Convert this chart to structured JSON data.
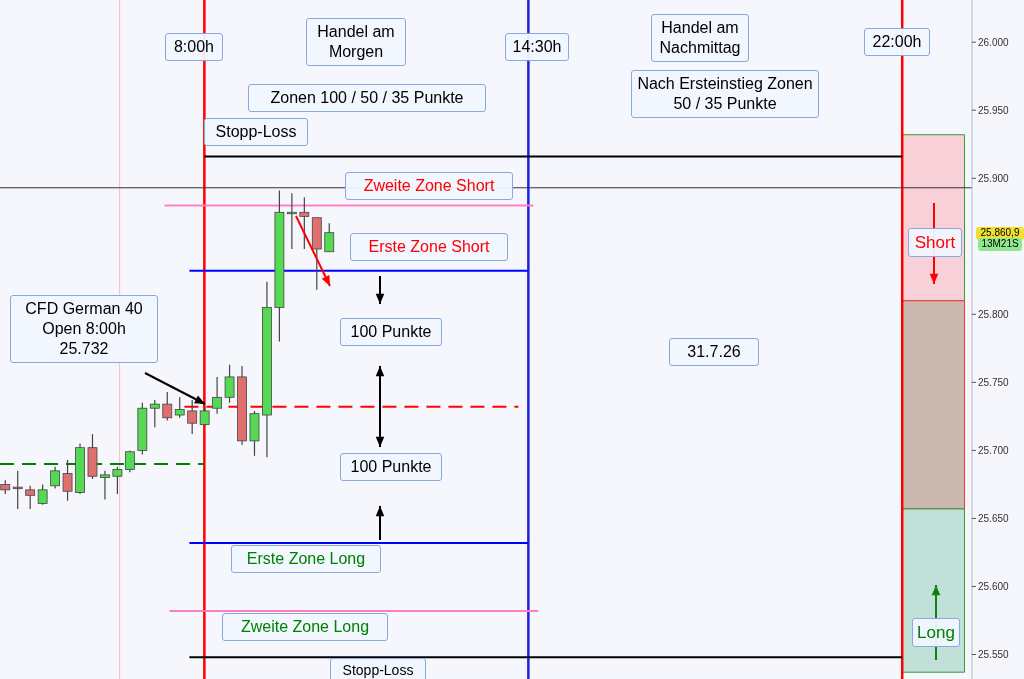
{
  "chart_data": {
    "type": "candlestick",
    "x": [
      4,
      4.25,
      4.5,
      4.75,
      5,
      5.25,
      5.5,
      5.75,
      6,
      6.25,
      6.5,
      6.75,
      7,
      7.25,
      7.5,
      7.75,
      8,
      8.25,
      8.5,
      8.75,
      9,
      9.25,
      9.5,
      9.75,
      10,
      10.25,
      10.5
    ],
    "ohlc": [
      [
        25675,
        25678,
        25668,
        25671
      ],
      [
        25673,
        25685,
        25657,
        25672
      ],
      [
        25671,
        25674,
        25657,
        25667
      ],
      [
        25661,
        25675,
        25660,
        25671
      ],
      [
        25674,
        25688,
        25672,
        25685
      ],
      [
        25683,
        25693,
        25663,
        25670
      ],
      [
        25669,
        25705,
        25668,
        25702
      ],
      [
        25702,
        25712,
        25679,
        25681
      ],
      [
        25680,
        25685,
        25664,
        25682
      ],
      [
        25681,
        25688,
        25668,
        25686
      ],
      [
        25686,
        25700,
        25684,
        25699
      ],
      [
        25700,
        25735,
        25697,
        25731
      ],
      [
        25731,
        25737,
        25717,
        25734
      ],
      [
        25734,
        25743,
        25722,
        25724
      ],
      [
        25726,
        25739,
        25724,
        25730
      ],
      [
        25729,
        25737,
        25712,
        25720
      ],
      [
        25719,
        25732,
        25718,
        25729
      ],
      [
        25731,
        25754,
        25727,
        25739
      ],
      [
        25739,
        25763,
        25735,
        25754
      ],
      [
        25754,
        25762,
        25704,
        25707
      ],
      [
        25707,
        25729,
        25696,
        25727
      ],
      [
        25726,
        25824,
        25695,
        25805
      ],
      [
        25805,
        25891,
        25780,
        25875
      ],
      [
        25874,
        25889,
        25848,
        25875
      ],
      [
        25875,
        25886,
        25848,
        25872
      ],
      [
        25871,
        25871,
        25818,
        25848
      ],
      [
        25846,
        25867,
        25846,
        25860
      ]
    ],
    "colors": [
      "#e07070",
      "#e07070",
      "#e07070",
      "#55d955",
      "#55d955",
      "#e07070",
      "#55d955",
      "#e07070",
      "#55d955",
      "#55d955",
      "#55d955",
      "#55d955",
      "#55d955",
      "#e07070",
      "#55d955",
      "#e07070",
      "#55d955",
      "#55d955",
      "#55d955",
      "#e07070",
      "#55d955",
      "#55d955",
      "#55d955",
      "#55d955",
      "#e07070",
      "#e07070",
      "#55d955"
    ],
    "xlim": [
      3.9,
      23.4
    ],
    "ylim": [
      25532,
      26031
    ],
    "yticks": [
      {
        "value": 25550,
        "label": "25.550"
      },
      {
        "value": 25600,
        "label": "25.600"
      },
      {
        "value": 25650,
        "label": "25.650"
      },
      {
        "value": 25700,
        "label": "25.700"
      },
      {
        "value": 25750,
        "label": "25.750"
      },
      {
        "value": 25800,
        "label": "25.800"
      },
      {
        "value": 25900,
        "label": "25.900"
      },
      {
        "value": 25950,
        "label": "25.950"
      },
      {
        "value": 26000,
        "label": "26.000"
      }
    ],
    "tick_labels": "y",
    "ref_lines": [
      {
        "axis": "x",
        "value": 6.3,
        "color": "#ffb8b8"
      },
      {
        "axis": "x",
        "value": 8,
        "label": "8:00h",
        "color": "#ff0000"
      },
      {
        "axis": "x",
        "value": 14.5,
        "label": "14:30h",
        "color": "#2020e0"
      },
      {
        "axis": "x",
        "value": 22,
        "label": "22:00h",
        "color": "#ff0000"
      },
      {
        "axis": "y",
        "value": 25916,
        "label": "Stopp-Loss",
        "color": "#000000"
      },
      {
        "axis": "y",
        "value": 25893,
        "color": "#333333"
      },
      {
        "axis": "y",
        "value": 25880,
        "label": "Zweite Zone Short",
        "color": "#ff80c0"
      },
      {
        "axis": "y",
        "value": 25832,
        "label": "Erste Zone Short",
        "color": "#0000ff"
      },
      {
        "axis": "y",
        "value": 25732,
        "color": "#ff0000",
        "line_style": "dashed"
      },
      {
        "axis": "y",
        "value": 25690,
        "color": "#008000",
        "line_style": "dashed"
      },
      {
        "axis": "y",
        "value": 25632,
        "label": "Erste Zone Long",
        "color": "#0000ff"
      },
      {
        "axis": "y",
        "value": 25582,
        "label": "Zweite Zone Long",
        "color": "#ff80c0"
      },
      {
        "axis": "y",
        "value": 25548,
        "label": "Stopp-Loss",
        "color": "#000000"
      }
    ],
    "bands": [
      {
        "axis": "y",
        "from": 25810,
        "to": 25932,
        "label": "Short",
        "color": "#f8d0d8"
      },
      {
        "axis": "y",
        "from": 25657,
        "to": 25810,
        "color": "#c8b8b0"
      },
      {
        "axis": "y",
        "from": 25537,
        "to": 25657,
        "label": "Long",
        "color": "#c0e0d8"
      }
    ],
    "annotations": [
      "Handel am Morgen",
      "Zonen 100 / 50 / 35 Punkte",
      "Handel am Nachmittag",
      "Nach Ersteinstieg Zonen 50 / 35 Punkte",
      "CFD German 40\nOpen  8:00h\n25.732",
      "100 Punkte",
      "100 Punkte",
      "31.7.26",
      "25.860,9",
      "13M21S"
    ]
  }
}
